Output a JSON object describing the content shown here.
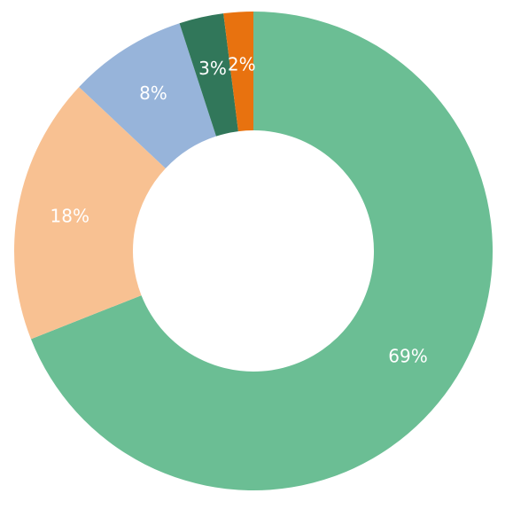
{
  "chart_data": {
    "type": "pie",
    "donut": true,
    "slices": [
      {
        "label": "69%",
        "value": 69,
        "color": "#6BBE94"
      },
      {
        "label": "18%",
        "value": 18,
        "color": "#F8C192"
      },
      {
        "label": "8%",
        "value": 8,
        "color": "#97B4DA"
      },
      {
        "label": "3%",
        "value": 3,
        "color": "#31775A"
      },
      {
        "label": "2%",
        "value": 2,
        "color": "#E8720F"
      }
    ]
  }
}
